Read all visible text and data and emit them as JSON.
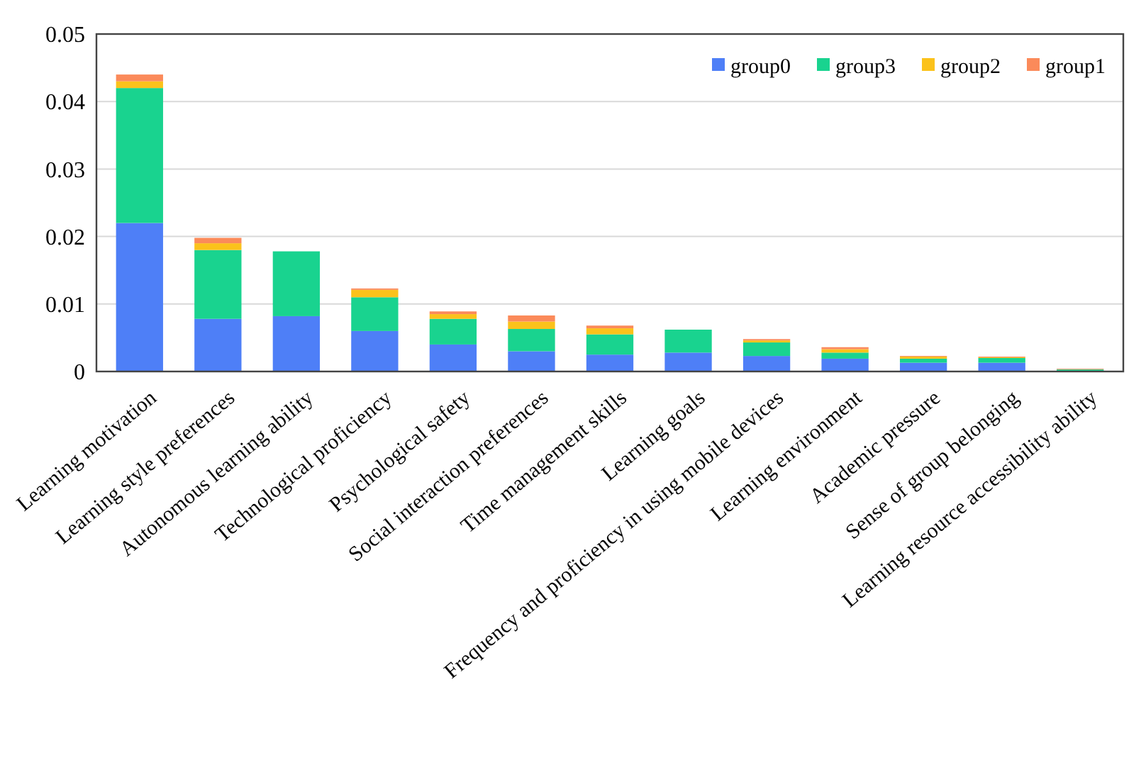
{
  "chart_data": {
    "type": "bar",
    "stacked": true,
    "categories": [
      "Learning motivation",
      "Learning style preferences",
      "Autonomous learning ability",
      "Technological proficiency",
      "Psychological safety",
      "Social interaction preferences",
      "Time management skills",
      "Learning goals",
      "Frequency and proficiency in using mobile devices",
      "Learning environment",
      "Academic pressure",
      "Sense of group belonging",
      "Learning resource accessibility ability"
    ],
    "series": [
      {
        "name": "group0",
        "color": "#4e7ff7",
        "values": [
          0.022,
          0.0078,
          0.0082,
          0.006,
          0.004,
          0.003,
          0.0025,
          0.0028,
          0.0023,
          0.0019,
          0.0013,
          0.0013,
          null
        ]
      },
      {
        "name": "group3",
        "color": "#19d38f",
        "values": [
          0.02,
          0.0102,
          0.0096,
          0.005,
          0.0038,
          0.0033,
          0.003,
          0.0034,
          0.002,
          0.0009,
          0.0006,
          0.0007,
          0.0003
        ]
      },
      {
        "name": "group2",
        "color": "#fbc21b",
        "values": [
          0.001,
          0.001,
          0,
          0.0011,
          0.0007,
          0.0011,
          0.0009,
          0,
          0.0003,
          0.0005,
          0.0003,
          0.0001,
          null
        ]
      },
      {
        "name": "group1",
        "color": "#fb8a5a",
        "values": [
          0.001,
          0.0008,
          0,
          0.0002,
          0.0004,
          0.0009,
          0.0004,
          0,
          0.0002,
          0.0003,
          0.0001,
          0.0001,
          0.0001
        ]
      }
    ],
    "ylim": [
      0,
      0.05
    ],
    "yticks": [
      {
        "value": 0,
        "label": "0"
      },
      {
        "value": 0.01,
        "label": "0.01"
      },
      {
        "value": 0.02,
        "label": "0.02"
      },
      {
        "value": 0.03,
        "label": "0.03"
      },
      {
        "value": 0.04,
        "label": "0.04"
      },
      {
        "value": 0.05,
        "label": "0.05"
      }
    ],
    "grid": "y",
    "legend": "top right"
  }
}
